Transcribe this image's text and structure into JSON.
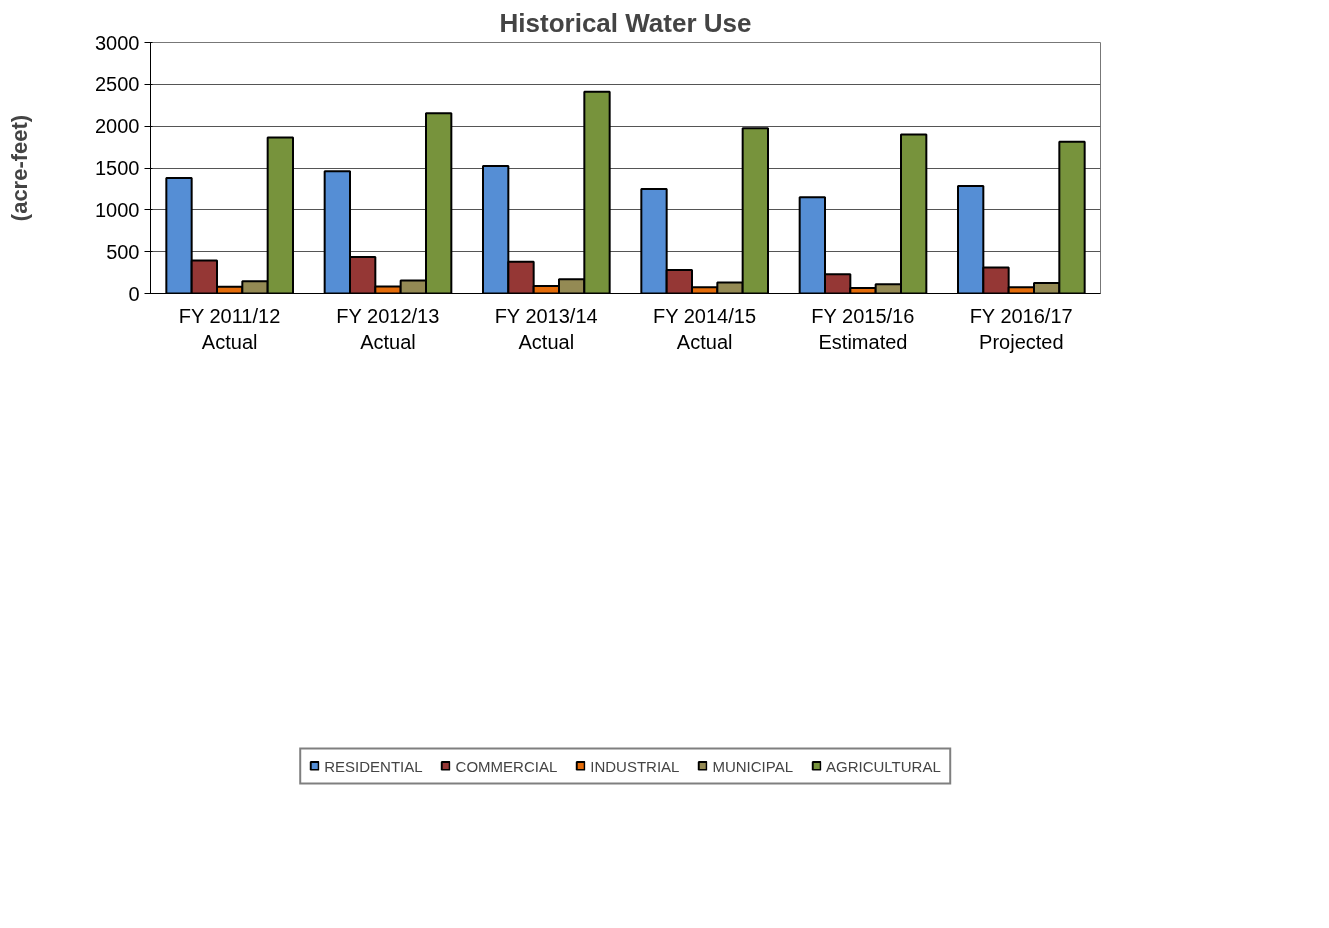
{
  "chart_data": {
    "type": "bar",
    "title": "Historical Water Use",
    "ylabel": "(acre-feet)",
    "categories": [
      "FY 2011/12\nActual",
      "FY 2012/13\nActual",
      "FY 2013/14\nActual",
      "FY 2014/15\nActual",
      "FY 2015/16\nEstimated",
      "FY 2016/17\nProjected"
    ],
    "series": [
      {
        "name": "RESIDENTIAL",
        "color": "#558ed5",
        "values": [
          1380,
          1460,
          1525,
          1250,
          1150,
          1285
        ]
      },
      {
        "name": "COMMERCIAL",
        "color": "#953735",
        "values": [
          395,
          435,
          380,
          280,
          230,
          310
        ]
      },
      {
        "name": "INDUSTRIAL",
        "color": "#e46c0a",
        "values": [
          80,
          85,
          90,
          75,
          65,
          75
        ]
      },
      {
        "name": "MUNICIPAL",
        "color": "#948a54",
        "values": [
          145,
          155,
          170,
          130,
          110,
          125
        ]
      },
      {
        "name": "AGRICULTURAL",
        "color": "#77933c",
        "values": [
          1865,
          2155,
          2410,
          1975,
          1900,
          1815
        ]
      }
    ],
    "ylim": [
      0,
      3000
    ],
    "yticks": [
      0,
      500,
      1000,
      1500,
      2000,
      2500,
      3000
    ],
    "grid": "y",
    "legend": "bottom"
  }
}
